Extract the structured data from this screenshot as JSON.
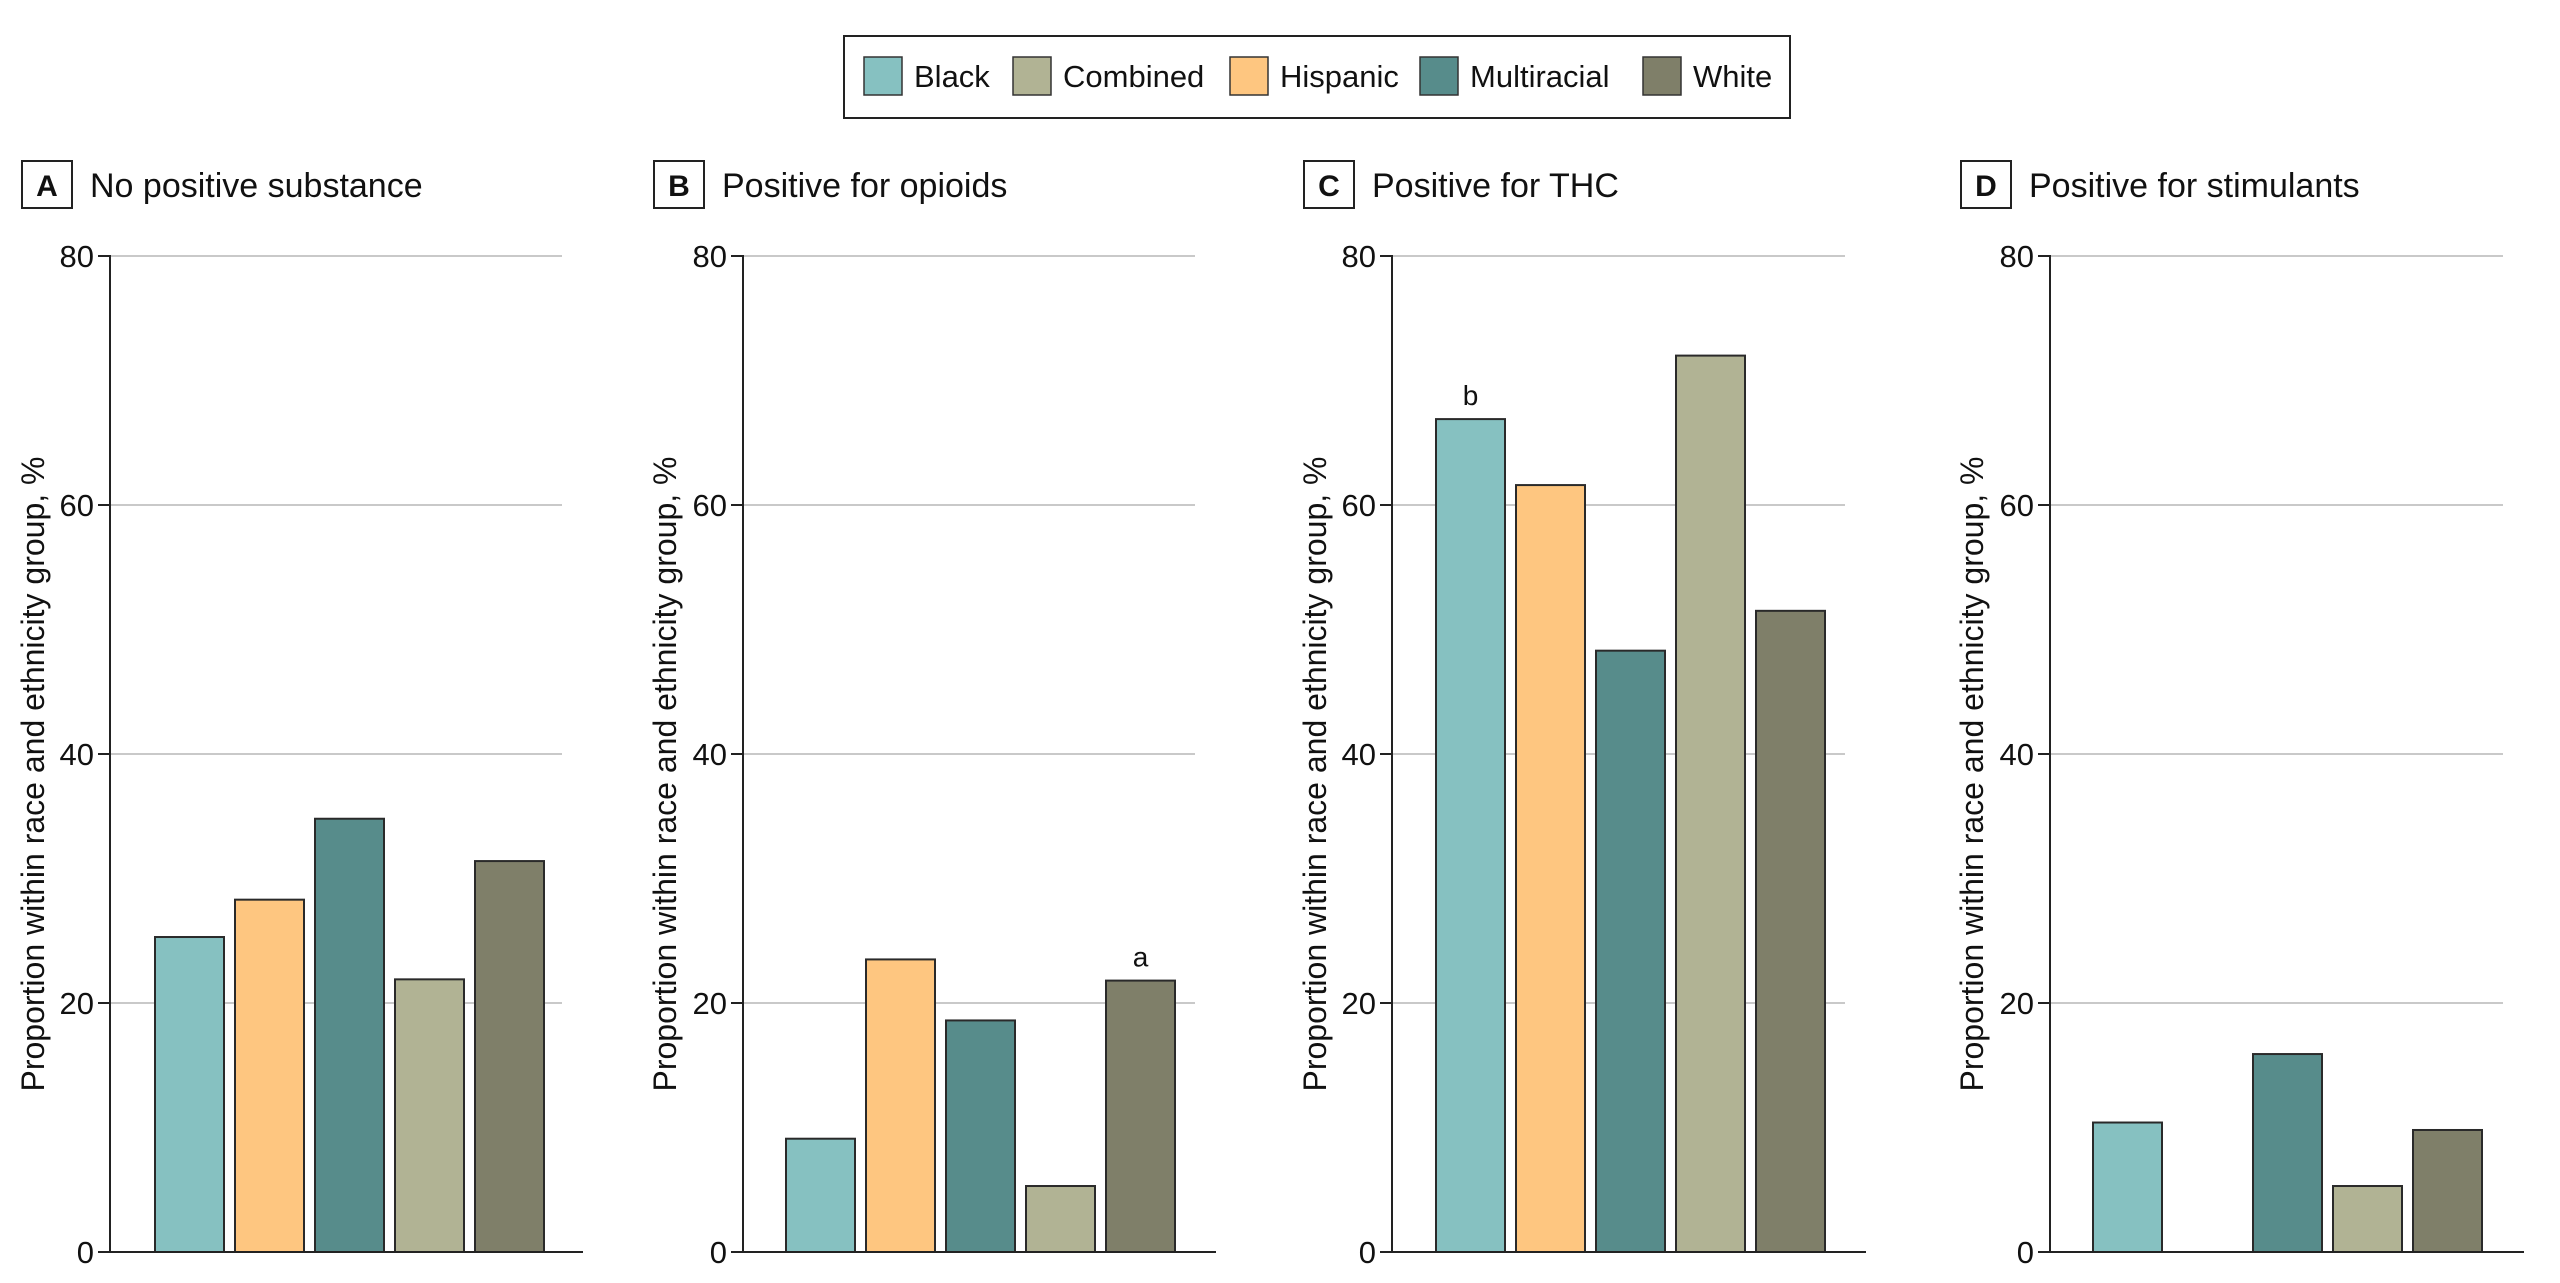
{
  "colors": {
    "Black": "#86c1c1",
    "Combined": "#b1b394",
    "Hispanic": "#fec680",
    "Multiracial": "#578c8b",
    "White": "#7f7f69"
  },
  "legend": {
    "items": [
      "Black",
      "Combined",
      "Hispanic",
      "Multiracial",
      "White"
    ]
  },
  "chart_data": [
    {
      "type": "bar",
      "letter": "A",
      "title": "No positive substance",
      "ylabel": "Proportion within race and ethnicity group, %",
      "ylim": [
        0,
        80
      ],
      "yticks": [
        "0",
        "20",
        "40",
        "60",
        "80"
      ],
      "grid": true,
      "series": [
        {
          "name": "Black",
          "value": 25.3
        },
        {
          "name": "Hispanic",
          "value": 28.3
        },
        {
          "name": "Multiracial",
          "value": 34.8
        },
        {
          "name": "Combined",
          "value": 21.9
        },
        {
          "name": "White",
          "value": 31.4
        }
      ],
      "annotations": []
    },
    {
      "type": "bar",
      "letter": "B",
      "title": "Positive for opioids",
      "ylabel": "Proportion within race and ethnicity group, %",
      "ylim": [
        0,
        80
      ],
      "yticks": [
        "0",
        "20",
        "40",
        "60",
        "80"
      ],
      "grid": true,
      "series": [
        {
          "name": "Black",
          "value": 9.1
        },
        {
          "name": "Hispanic",
          "value": 23.5
        },
        {
          "name": "Multiracial",
          "value": 18.6
        },
        {
          "name": "Combined",
          "value": 5.3
        },
        {
          "name": "White",
          "value": 21.8
        }
      ],
      "annotations": [
        {
          "series": "White",
          "text": "a"
        }
      ]
    },
    {
      "type": "bar",
      "letter": "C",
      "title": "Positive for THC",
      "ylabel": "Proportion within race and ethnicity group, %",
      "ylim": [
        0,
        80
      ],
      "yticks": [
        "0",
        "20",
        "40",
        "60",
        "80"
      ],
      "grid": true,
      "series": [
        {
          "name": "Black",
          "value": 66.9
        },
        {
          "name": "Hispanic",
          "value": 61.6
        },
        {
          "name": "Multiracial",
          "value": 48.3
        },
        {
          "name": "Combined",
          "value": 72.0
        },
        {
          "name": "White",
          "value": 51.5
        }
      ],
      "annotations": [
        {
          "series": "Black",
          "text": "b"
        }
      ]
    },
    {
      "type": "bar",
      "letter": "D",
      "title": "Positive for stimulants",
      "ylabel": "Proportion within race and ethnicity group, %",
      "ylim": [
        0,
        80
      ],
      "yticks": [
        "0",
        "20",
        "40",
        "60",
        "80"
      ],
      "grid": true,
      "series": [
        {
          "name": "Black",
          "value": 10.4
        },
        {
          "name": "Hispanic",
          "value": 0
        },
        {
          "name": "Multiracial",
          "value": 15.9
        },
        {
          "name": "Combined",
          "value": 5.3
        },
        {
          "name": "White",
          "value": 9.8
        }
      ],
      "annotations": []
    }
  ]
}
